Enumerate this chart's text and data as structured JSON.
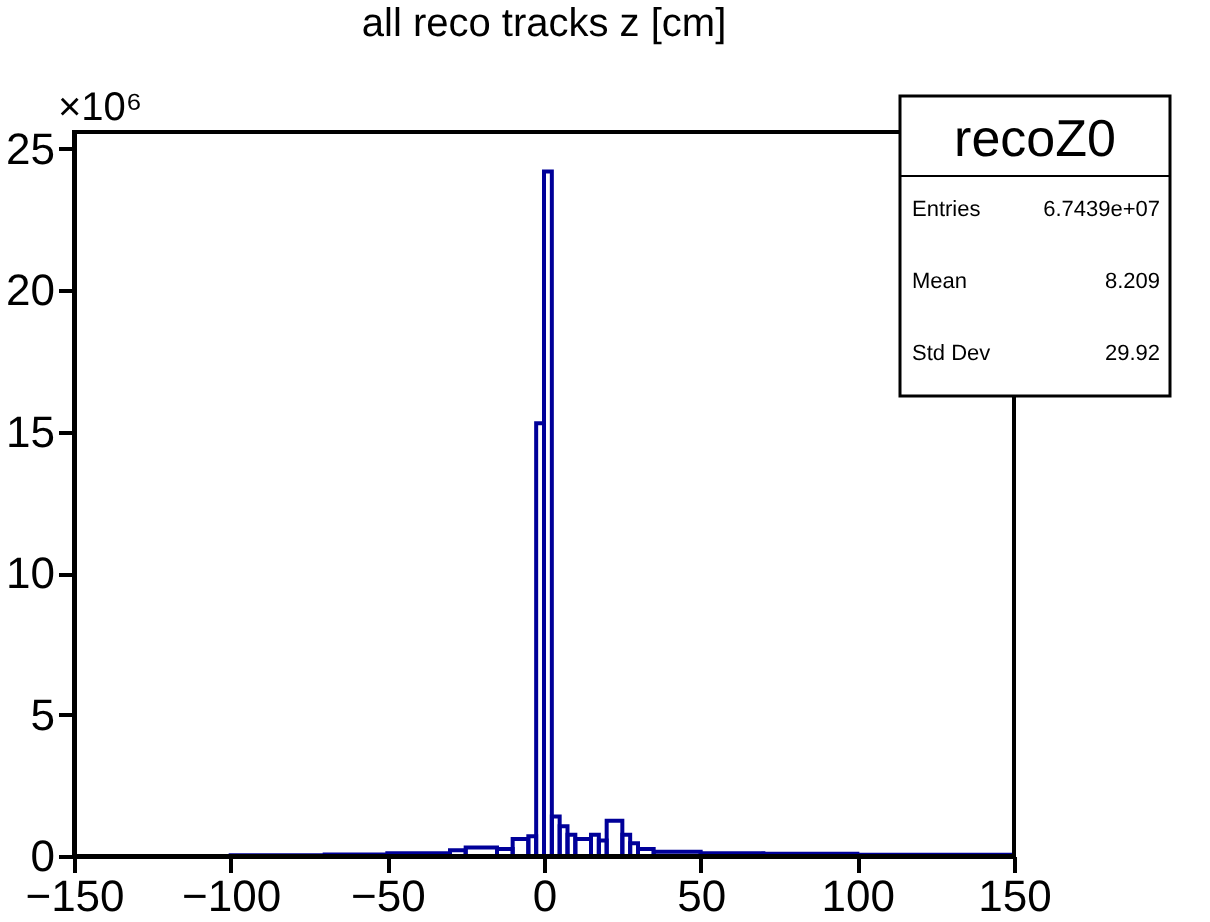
{
  "chart_data": {
    "type": "histogram",
    "title": "all reco tracks z [cm]",
    "bins": [
      -100,
      -70,
      -50,
      -30,
      -25,
      -15,
      -10,
      -5,
      -2.5,
      0,
      2.5,
      5,
      7.5,
      10,
      15,
      17.5,
      20,
      25,
      27.5,
      30,
      35,
      50,
      70,
      100,
      150
    ],
    "values": [
      0.03,
      0.05,
      0.1,
      0.2,
      0.3,
      0.25,
      0.6,
      0.7,
      15.3,
      24.2,
      1.4,
      1.05,
      0.75,
      0.6,
      0.75,
      0.55,
      1.25,
      0.75,
      0.45,
      0.25,
      0.15,
      0.1,
      0.08,
      0.04
    ],
    "color": "#000099",
    "xlim": [
      -150,
      150
    ],
    "xticks": [
      -150,
      -100,
      -50,
      0,
      50,
      100,
      150
    ],
    "ylim": [
      0,
      25.6
    ],
    "yticks": [
      0,
      5,
      10,
      15,
      20,
      25
    ],
    "grid": false,
    "annotations": [
      "×10⁶",
      "recoZ0",
      "Entries",
      "6.7439e+07",
      "Mean",
      "8.209",
      "Std Dev",
      "29.92"
    ]
  }
}
